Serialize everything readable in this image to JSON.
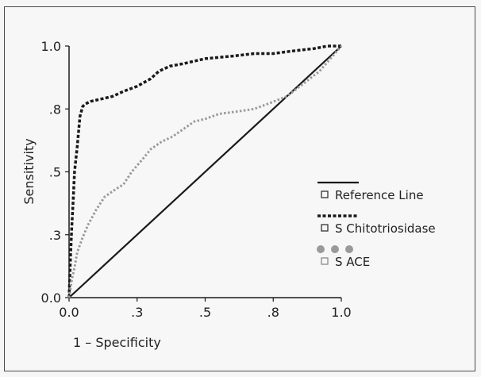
{
  "chart_data": {
    "type": "line",
    "xlabel": "1 – Specificity",
    "ylabel": "Sensitivity",
    "xlim": [
      0,
      1
    ],
    "ylim": [
      0,
      1
    ],
    "x_ticks": [
      {
        "value": 0.0,
        "label": "0.0"
      },
      {
        "value": 0.25,
        "label": ".3"
      },
      {
        "value": 0.5,
        "label": ".5"
      },
      {
        "value": 0.75,
        "label": ".8"
      },
      {
        "value": 1.0,
        "label": "1.0"
      }
    ],
    "y_ticks": [
      {
        "value": 0.0,
        "label": "0.0"
      },
      {
        "value": 0.25,
        "label": ".3"
      },
      {
        "value": 0.5,
        "label": ".5"
      },
      {
        "value": 0.75,
        "label": ".8"
      },
      {
        "value": 1.0,
        "label": "1.0"
      }
    ],
    "grid": false,
    "legend_position": "right",
    "series": [
      {
        "name": "Reference Line",
        "style": "solid",
        "color": "#1a1a1a",
        "x": [
          0,
          1
        ],
        "y": [
          0,
          1
        ]
      },
      {
        "name": "S Chitotriosidase",
        "style": "dashed",
        "color": "#1a1a1a",
        "x": [
          0,
          0.005,
          0.01,
          0.015,
          0.02,
          0.03,
          0.035,
          0.04,
          0.05,
          0.06,
          0.08,
          0.12,
          0.16,
          0.2,
          0.25,
          0.3,
          0.33,
          0.37,
          0.42,
          0.5,
          0.6,
          0.68,
          0.75,
          0.82,
          0.9,
          0.95,
          1.0
        ],
        "y": [
          0,
          0.15,
          0.28,
          0.38,
          0.5,
          0.6,
          0.66,
          0.72,
          0.76,
          0.77,
          0.78,
          0.79,
          0.8,
          0.82,
          0.84,
          0.87,
          0.9,
          0.92,
          0.93,
          0.95,
          0.96,
          0.97,
          0.97,
          0.98,
          0.99,
          1.0,
          1.0
        ]
      },
      {
        "name": "S ACE",
        "style": "dotted",
        "color": "#9a9a9a",
        "x": [
          0,
          0.01,
          0.02,
          0.03,
          0.05,
          0.07,
          0.1,
          0.13,
          0.17,
          0.2,
          0.23,
          0.27,
          0.3,
          0.34,
          0.38,
          0.42,
          0.46,
          0.5,
          0.55,
          0.62,
          0.68,
          0.73,
          0.8,
          0.86,
          0.92,
          0.96,
          1.0
        ],
        "y": [
          0,
          0.07,
          0.12,
          0.18,
          0.24,
          0.29,
          0.35,
          0.4,
          0.43,
          0.45,
          0.5,
          0.55,
          0.59,
          0.62,
          0.64,
          0.67,
          0.7,
          0.71,
          0.73,
          0.74,
          0.75,
          0.77,
          0.8,
          0.85,
          0.9,
          0.95,
          1.0
        ]
      }
    ]
  }
}
